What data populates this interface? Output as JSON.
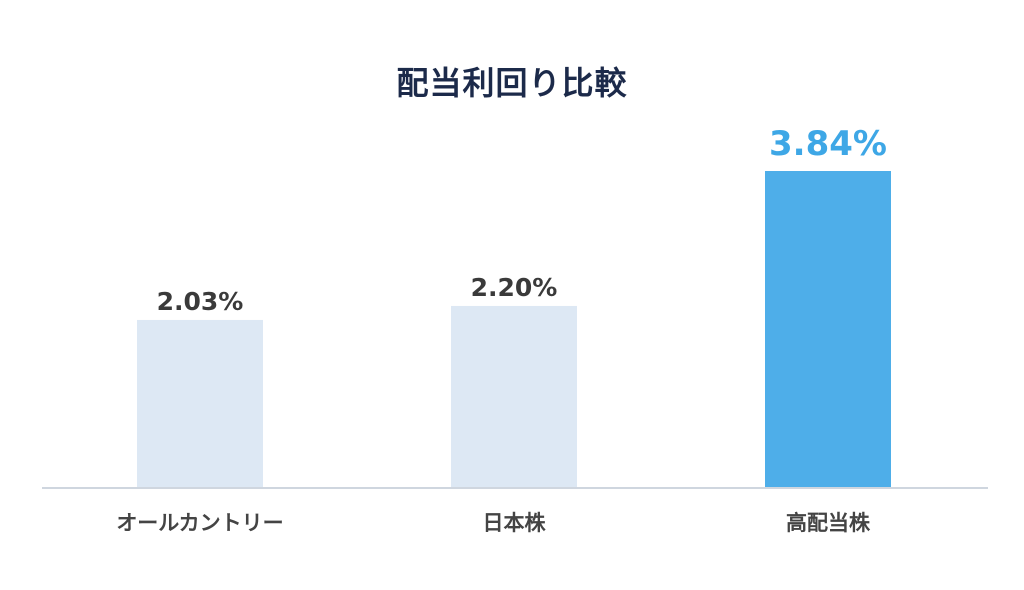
{
  "chart_data": {
    "type": "bar",
    "title": "配当利回り比較",
    "categories": [
      "オールカントリー",
      "日本株",
      "高配当株"
    ],
    "values": [
      2.03,
      2.2,
      3.84
    ],
    "value_labels": [
      "2.03%",
      "2.20%",
      "3.84%"
    ],
    "unit": "%",
    "highlight_index": 2,
    "colors": {
      "bar": "#dde8f4",
      "bar_highlight": "#4eaee9",
      "label": "#3a3a3a",
      "label_highlight": "#3ea7e6",
      "axis": "#cfd6df",
      "category_label": "#444444"
    },
    "xlabel": "",
    "ylabel": "",
    "ylim": [
      0,
      3.84
    ],
    "grid": false
  }
}
